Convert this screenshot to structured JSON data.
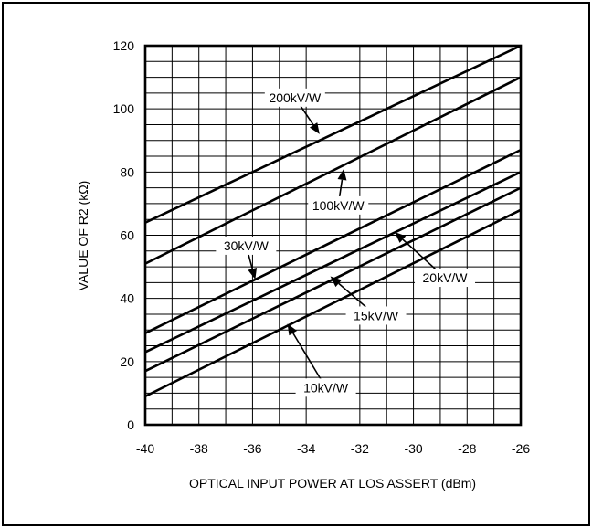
{
  "chart_data": {
    "type": "line",
    "title": "",
    "xlabel": "OPTICAL INPUT POWER AT LOS ASSERT (dBm)",
    "ylabel": "VALUE OF R2 (kΩ)",
    "xlim": [
      -40,
      -26
    ],
    "ylim": [
      0,
      120
    ],
    "xticks": [
      -40,
      -38,
      -36,
      -34,
      -32,
      -30,
      -28,
      -26
    ],
    "yticks": [
      0,
      20,
      40,
      60,
      80,
      100,
      120
    ],
    "grid": true,
    "minor_x_step": 1,
    "minor_y_step": 5,
    "series": [
      {
        "name": "200kV/W",
        "x": [
          -40,
          -26
        ],
        "y": [
          64,
          120
        ],
        "label_at": [
          -33.5,
          92
        ]
      },
      {
        "name": "100kV/W",
        "x": [
          -40,
          -26
        ],
        "y": [
          51,
          110
        ],
        "label_at": [
          -32.6,
          81
        ]
      },
      {
        "name": "30kV/W",
        "x": [
          -40,
          -26
        ],
        "y": [
          29,
          87
        ],
        "label_at": [
          -35.9,
          46
        ]
      },
      {
        "name": "20kV/W",
        "x": [
          -40,
          -26
        ],
        "y": [
          23,
          80
        ],
        "label_at": [
          -30.7,
          61
        ]
      },
      {
        "name": "15kV/W",
        "x": [
          -40,
          -26
        ],
        "y": [
          17,
          75
        ],
        "label_at": [
          -33.1,
          47
        ]
      },
      {
        "name": "10kV/W",
        "x": [
          -40,
          -26
        ],
        "y": [
          9,
          68
        ],
        "label_at": [
          -34.7,
          32
        ]
      }
    ]
  }
}
